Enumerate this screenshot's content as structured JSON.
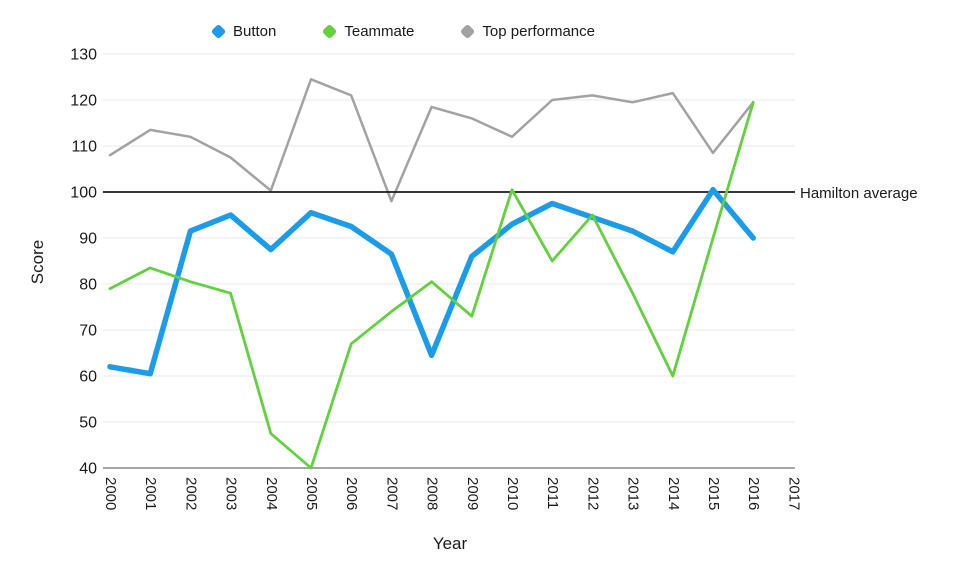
{
  "chart_data": {
    "type": "line",
    "title": "",
    "xlabel": "Year",
    "ylabel": "Score",
    "x": [
      2000,
      2001,
      2002,
      2003,
      2004,
      2005,
      2006,
      2007,
      2008,
      2009,
      2010,
      2011,
      2012,
      2013,
      2014,
      2015,
      2016
    ],
    "x_axis_ticks": [
      2000,
      2001,
      2002,
      2003,
      2004,
      2005,
      2006,
      2007,
      2008,
      2009,
      2010,
      2011,
      2012,
      2013,
      2014,
      2015,
      2016,
      2017
    ],
    "yticks": [
      40,
      50,
      60,
      70,
      80,
      90,
      100,
      110,
      120,
      130
    ],
    "ylim": [
      40,
      130
    ],
    "grid": true,
    "legend_position": "top",
    "series": [
      {
        "name": "Button",
        "color": "#1b9ceb",
        "width": 5.5,
        "z": 3,
        "values": [
          62,
          60.5,
          91.5,
          95,
          87.5,
          95.5,
          92.5,
          86.5,
          64.5,
          86,
          93,
          97.5,
          94.5,
          91.5,
          87,
          100.5,
          90
        ]
      },
      {
        "name": "Teammate",
        "color": "#61d13e",
        "width": 2.8,
        "z": 4,
        "values": [
          79,
          83.5,
          80.5,
          78,
          47.5,
          40,
          67,
          74,
          80.5,
          73,
          100.5,
          85,
          95,
          78,
          60,
          90,
          119.5
        ]
      },
      {
        "name": "Top performance",
        "color": "#a2a2a2",
        "width": 2.5,
        "z": 1,
        "values": [
          108,
          113.5,
          112,
          107.5,
          100.3,
          124.5,
          121,
          98,
          118.5,
          116,
          112,
          120,
          121,
          119.5,
          121.5,
          108.5,
          119.5
        ]
      }
    ],
    "annotation_line": {
      "label": "Hamilton average",
      "value": 100,
      "color": "#1a1a1a",
      "width": 1.8,
      "z": 2
    },
    "colors": {
      "gridline": "#eaeaea",
      "baseline_axis": "#999999",
      "text": "#1a1a1a"
    }
  }
}
